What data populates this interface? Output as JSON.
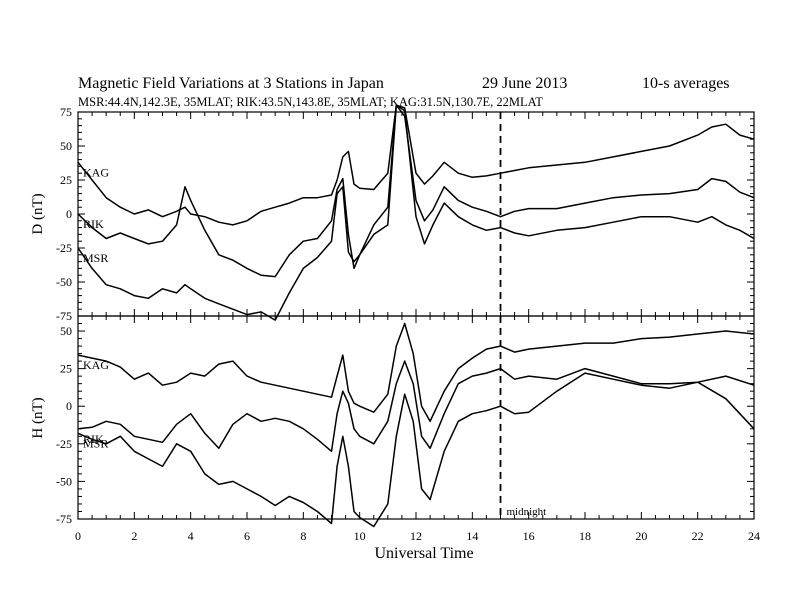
{
  "chart_data": {
    "type": "line",
    "title": "Magnetic Field Variations at 3 Stations in Japan",
    "date": "29 June     2013",
    "averaging": "10-s averages",
    "subtitle": "MSR:44.4N,142.3E, 35MLAT;   RIK:43.5N,143.8E, 35MLAT;   KAG:31.5N,130.7E, 22MLAT",
    "xlabel": "Universal Time",
    "xlim": [
      0,
      24
    ],
    "x_ticks": [
      "0",
      "2",
      "4",
      "6",
      "8",
      "10",
      "12",
      "14",
      "16",
      "18",
      "20",
      "22",
      "24"
    ],
    "annotations": [
      {
        "x": 15,
        "label": "midnight",
        "style": "dashed vertical line"
      }
    ],
    "panels": [
      {
        "ylabel": "D (nT)",
        "ylim": [
          -75,
          75
        ],
        "y_ticks": [
          "75",
          "50",
          "25",
          "0",
          "-25",
          "-50",
          "-75"
        ],
        "x": [
          0,
          0.5,
          1,
          1.5,
          2,
          2.5,
          3,
          3.5,
          3.8,
          4,
          4.5,
          5,
          5.5,
          6,
          6.5,
          7,
          7.5,
          8,
          8.5,
          9,
          9.2,
          9.4,
          9.6,
          9.8,
          10,
          10.5,
          11,
          11.3,
          11.6,
          12,
          12.3,
          12.6,
          13,
          13.5,
          14,
          14.5,
          15,
          15.5,
          16,
          17,
          18,
          19,
          20,
          21,
          22,
          22.5,
          23,
          23.5,
          24
        ],
        "series": [
          {
            "name": "KAG",
            "values": [
              38,
              25,
              12,
              5,
              0,
              3,
              -2,
              2,
              5,
              0,
              -2,
              -6,
              -8,
              -5,
              2,
              5,
              8,
              12,
              12,
              14,
              25,
              42,
              46,
              22,
              19,
              18,
              30,
              85,
              78,
              30,
              22,
              28,
              38,
              30,
              27,
              28,
              30,
              32,
              34,
              36,
              38,
              42,
              46,
              50,
              58,
              64,
              66,
              58,
              55
            ]
          },
          {
            "name": "RIK",
            "values": [
              0,
              -10,
              -18,
              -14,
              -18,
              -22,
              -20,
              -8,
              20,
              10,
              -12,
              -30,
              -34,
              -40,
              -45,
              -46,
              -30,
              -20,
              -18,
              -5,
              18,
              26,
              -15,
              -40,
              -30,
              -8,
              5,
              84,
              72,
              10,
              -5,
              3,
              20,
              10,
              5,
              2,
              -2,
              2,
              4,
              4,
              8,
              12,
              14,
              15,
              18,
              26,
              24,
              16,
              12
            ]
          },
          {
            "name": "MSR",
            "values": [
              -25,
              -40,
              -52,
              -55,
              -60,
              -62,
              -55,
              -58,
              -52,
              -55,
              -62,
              -66,
              -70,
              -74,
              -72,
              -78,
              -58,
              -40,
              -32,
              -20,
              15,
              20,
              -28,
              -35,
              -30,
              -15,
              -8,
              82,
              76,
              -2,
              -22,
              -8,
              8,
              -2,
              -8,
              -12,
              -10,
              -14,
              -16,
              -12,
              -10,
              -6,
              -2,
              -2,
              -6,
              -2,
              -8,
              -12,
              -18
            ]
          }
        ]
      },
      {
        "ylabel": "H (nT)",
        "ylim": [
          -75,
          60
        ],
        "y_ticks": [
          "50",
          "25",
          "0",
          "-25",
          "-50",
          "-75"
        ],
        "x": [
          0,
          0.5,
          1,
          1.5,
          2,
          2.5,
          3,
          3.5,
          4,
          4.5,
          5,
          5.5,
          6,
          6.5,
          7,
          7.5,
          8,
          8.5,
          9,
          9.2,
          9.4,
          9.6,
          9.8,
          10,
          10.5,
          11,
          11.3,
          11.6,
          11.9,
          12.2,
          12.5,
          13,
          13.5,
          14,
          14.5,
          15,
          15.5,
          16,
          17,
          18,
          19,
          20,
          21,
          22,
          23,
          24
        ],
        "series": [
          {
            "name": "KAG",
            "values": [
              34,
              32,
              30,
              26,
              18,
              22,
              14,
              16,
              22,
              20,
              28,
              30,
              20,
              16,
              14,
              12,
              10,
              8,
              6,
              20,
              34,
              10,
              2,
              0,
              -4,
              8,
              40,
              55,
              35,
              0,
              -10,
              10,
              25,
              32,
              38,
              40,
              36,
              38,
              40,
              42,
              42,
              45,
              46,
              48,
              50,
              48
            ]
          },
          {
            "name": "RIK",
            "values": [
              -15,
              -14,
              -10,
              -12,
              -20,
              -22,
              -24,
              -12,
              -5,
              -18,
              -28,
              -12,
              -5,
              -10,
              -8,
              -10,
              -15,
              -22,
              -30,
              -5,
              10,
              2,
              -15,
              -20,
              -25,
              -10,
              15,
              30,
              15,
              -20,
              -28,
              -5,
              15,
              20,
              22,
              25,
              18,
              20,
              18,
              25,
              20,
              15,
              15,
              16,
              20,
              14
            ]
          },
          {
            "name": "MSR",
            "values": [
              -18,
              -22,
              -25,
              -20,
              -30,
              -35,
              -40,
              -25,
              -30,
              -45,
              -52,
              -50,
              -55,
              -60,
              -66,
              -60,
              -64,
              -70,
              -78,
              -40,
              -20,
              -40,
              -70,
              -74,
              -80,
              -65,
              -20,
              8,
              -10,
              -55,
              -62,
              -30,
              -10,
              -5,
              -3,
              0,
              -5,
              -4,
              10,
              22,
              18,
              14,
              12,
              16,
              5,
              -15
            ]
          }
        ]
      }
    ]
  }
}
